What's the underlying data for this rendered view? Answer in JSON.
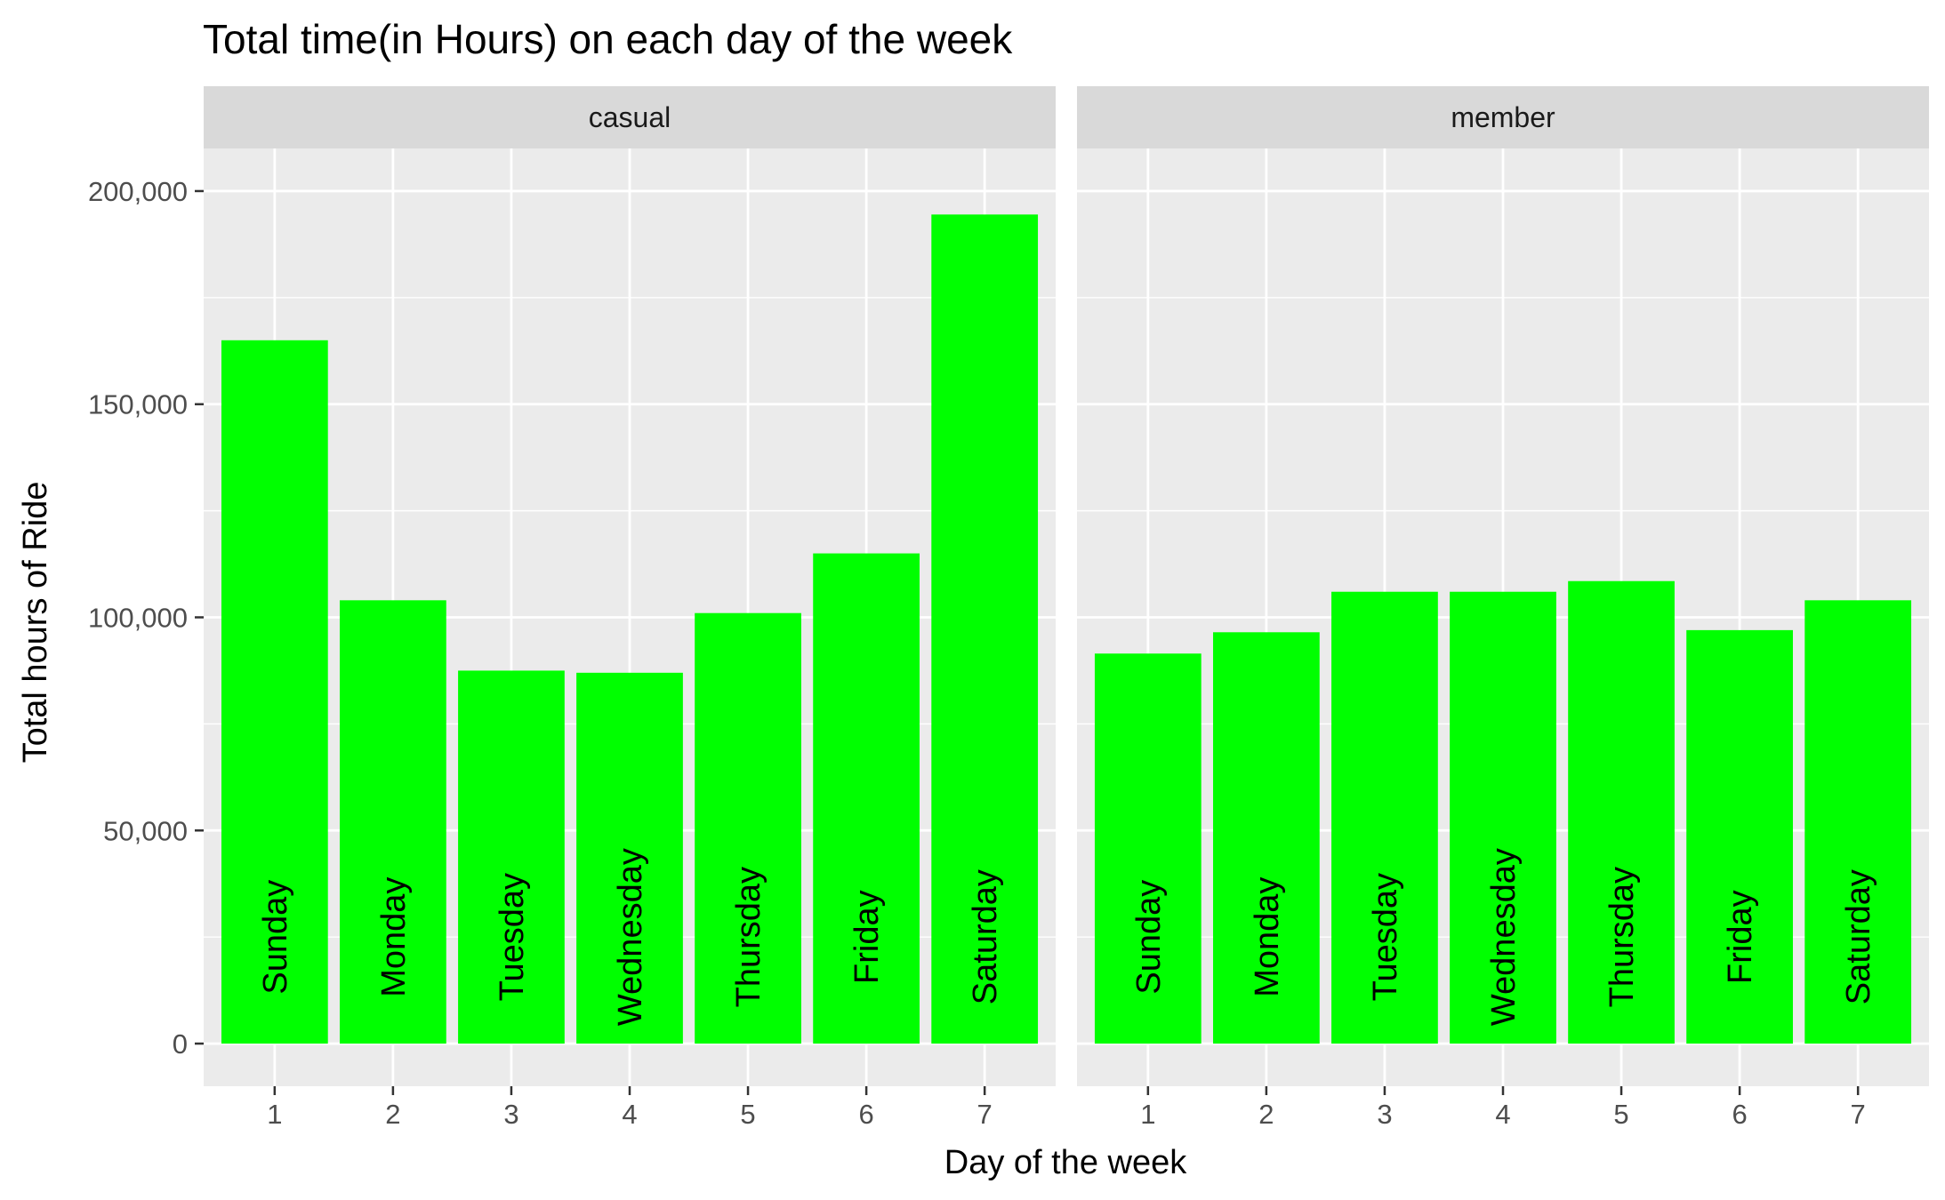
{
  "chart_data": {
    "type": "bar",
    "title": "Total time(in Hours) on each day of the week",
    "xlabel": "Day of the week",
    "ylabel": "Total hours of Ride",
    "ylim": [
      -10000,
      210000
    ],
    "yticks": [
      0,
      50000,
      100000,
      150000,
      200000
    ],
    "ytick_labels": [
      "0",
      "50,000",
      "100,000",
      "150,000",
      "200,000"
    ],
    "categories": [
      "1",
      "2",
      "3",
      "4",
      "5",
      "6",
      "7"
    ],
    "bar_color": "#00ff00",
    "panel_background": "#ebebeb",
    "strip_background": "#d9d9d9",
    "grid": true,
    "legend": "none",
    "panels": [
      {
        "name": "casual",
        "values": [
          165000,
          104000,
          87500,
          87000,
          101000,
          115000,
          194500
        ],
        "labels": [
          "Sunday",
          "Monday",
          "Tuesday",
          "Wednesday",
          "Thursday",
          "Friday",
          "Saturday"
        ]
      },
      {
        "name": "member",
        "values": [
          91500,
          96500,
          106000,
          106000,
          108500,
          97000,
          104000
        ],
        "labels": [
          "Sunday",
          "Monday",
          "Tuesday",
          "Wednesday",
          "Thursday",
          "Friday",
          "Saturday"
        ]
      }
    ]
  }
}
